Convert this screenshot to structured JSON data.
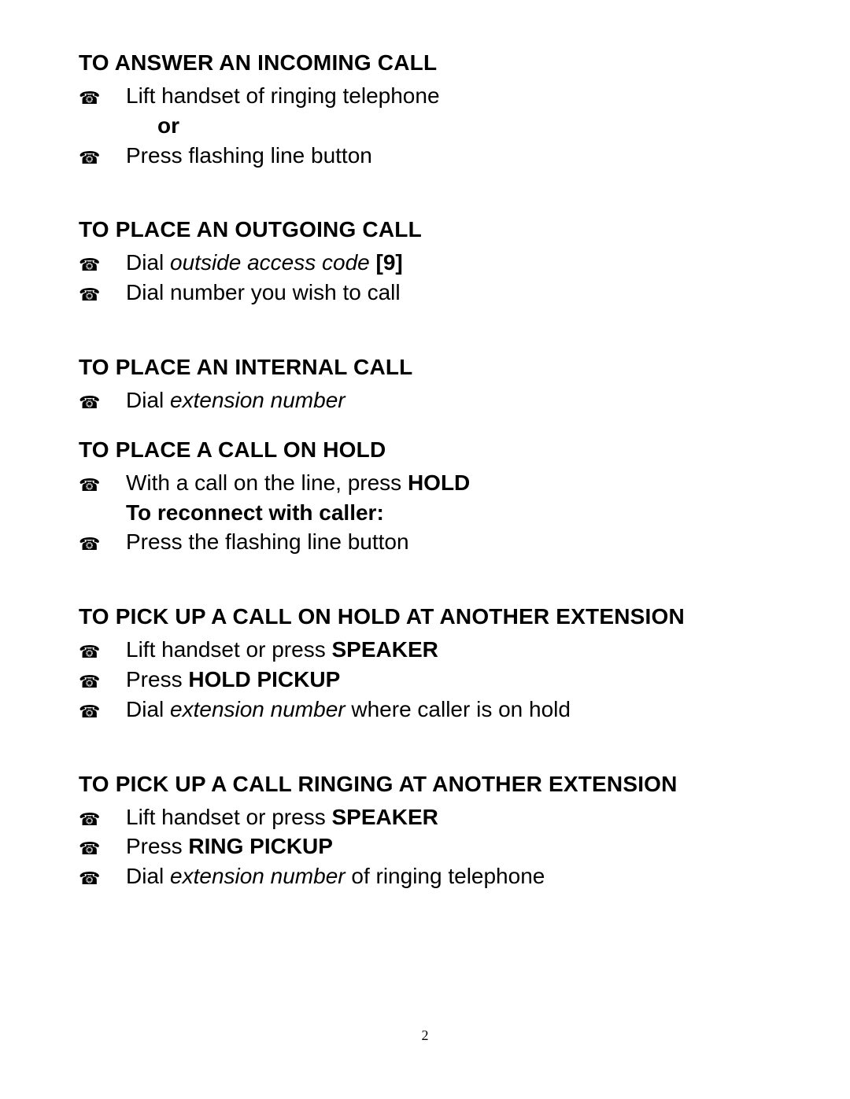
{
  "page_number": "2",
  "icon_glyph": "☎",
  "sections": {
    "s1": {
      "heading": "TO ANSWER AN INCOMING CALL",
      "i1": "Lift handset of ringing telephone",
      "sub1": "or",
      "i2": "Press flashing line button"
    },
    "s2": {
      "heading": "TO PLACE AN OUTGOING CALL",
      "i1_pre": "Dial ",
      "i1_italic": "outside access code",
      "i1_post": " ",
      "i1_bold": "[9]",
      "i2": "Dial number you wish to call"
    },
    "s3": {
      "heading": "TO PLACE AN INTERNAL CALL",
      "i1_pre": "Dial ",
      "i1_italic": "extension number"
    },
    "s4": {
      "heading": "TO PLACE A CALL ON HOLD",
      "i1_pre": "With a call on the line, press ",
      "i1_bold": "HOLD",
      "sub1": "To reconnect with caller:",
      "i2": "Press the flashing line button"
    },
    "s5": {
      "heading": "TO PICK UP A CALL ON HOLD AT ANOTHER EXTENSION",
      "i1_pre": "Lift handset or press ",
      "i1_bold": "SPEAKER",
      "i2_pre": "Press ",
      "i2_bold": "HOLD PICKUP",
      "i3_pre": "Dial ",
      "i3_italic": "extension number",
      "i3_post": " where caller is on hold"
    },
    "s6": {
      "heading": "TO PICK UP A CALL RINGING AT ANOTHER EXTENSION",
      "i1_pre": "Lift handset or press ",
      "i1_bold": "SPEAKER",
      "i2_pre": "Press ",
      "i2_bold": "RING PICKUP",
      "i3_pre": "Dial ",
      "i3_italic": "extension number",
      "i3_post": " of ringing telephone"
    }
  }
}
